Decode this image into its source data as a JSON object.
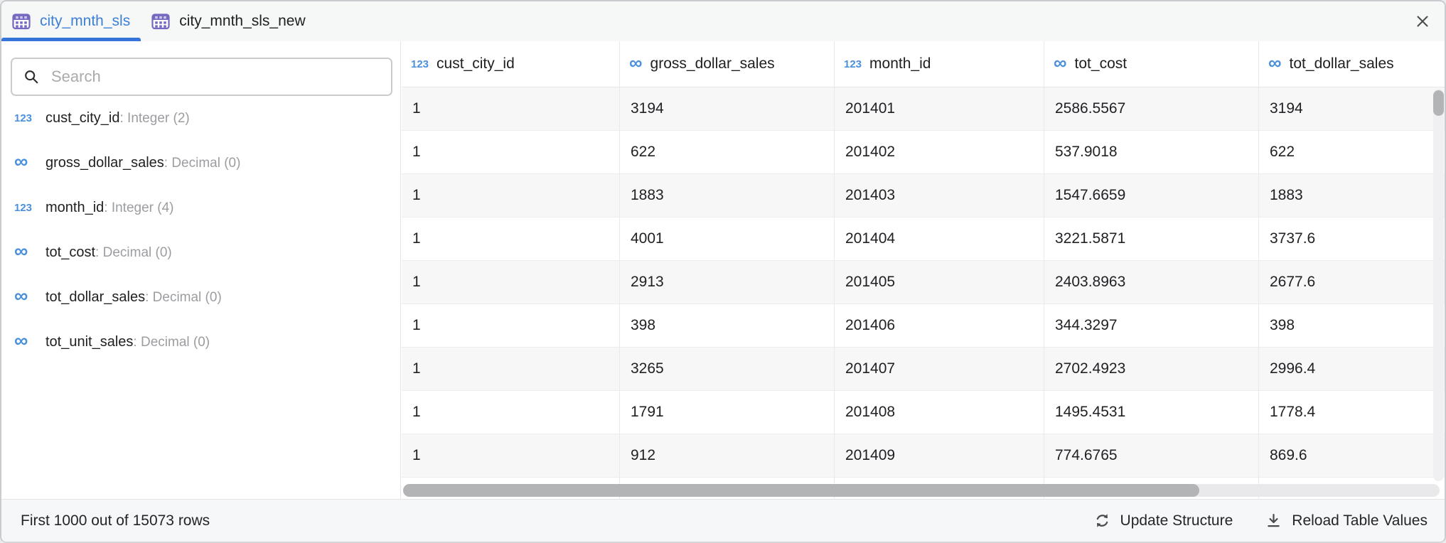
{
  "tabs": [
    {
      "label": "city_mnth_sls",
      "active": true
    },
    {
      "label": "city_mnth_sls_new",
      "active": false
    }
  ],
  "icons": {
    "numeric": "123",
    "decimal": "∞",
    "tab_icon": "table-grid",
    "search_icon": "magnifier",
    "close_icon": "x-cross",
    "update_icon": "sync-circular-arrows",
    "reload_icon": "download-arrow-to-line"
  },
  "sidebar": {
    "search_placeholder": "Search",
    "fields": [
      {
        "name": "cust_city_id",
        "suffix": ": Integer (2)",
        "icon": "numeric"
      },
      {
        "name": "gross_dollar_sales",
        "suffix": ": Decimal (0)",
        "icon": "decimal"
      },
      {
        "name": "month_id",
        "suffix": ": Integer (4)",
        "icon": "numeric"
      },
      {
        "name": "tot_cost",
        "suffix": ": Decimal (0)",
        "icon": "decimal"
      },
      {
        "name": "tot_dollar_sales",
        "suffix": ": Decimal (0)",
        "icon": "decimal"
      },
      {
        "name": "tot_unit_sales",
        "suffix": ": Decimal (0)",
        "icon": "decimal"
      }
    ]
  },
  "table": {
    "columns": [
      {
        "name": "cust_city_id",
        "icon": "numeric"
      },
      {
        "name": "gross_dollar_sales",
        "icon": "decimal"
      },
      {
        "name": "month_id",
        "icon": "numeric"
      },
      {
        "name": "tot_cost",
        "icon": "decimal"
      },
      {
        "name": "tot_dollar_sales",
        "icon": "decimal"
      }
    ],
    "rows": [
      [
        "1",
        "3194",
        "201401",
        "2586.5567",
        "3194"
      ],
      [
        "1",
        "622",
        "201402",
        "537.9018",
        "622"
      ],
      [
        "1",
        "1883",
        "201403",
        "1547.6659",
        "1883"
      ],
      [
        "1",
        "4001",
        "201404",
        "3221.5871",
        "3737.6"
      ],
      [
        "1",
        "2913",
        "201405",
        "2403.8963",
        "2677.6"
      ],
      [
        "1",
        "398",
        "201406",
        "344.3297",
        "398"
      ],
      [
        "1",
        "3265",
        "201407",
        "2702.4923",
        "2996.4"
      ],
      [
        "1",
        "1791",
        "201408",
        "1495.4531",
        "1778.4"
      ],
      [
        "1",
        "912",
        "201409",
        "774.6765",
        "869.6"
      ]
    ]
  },
  "status_bar": {
    "row_count_text": "First 1000 out of 15073 rows",
    "update_structure_label": "Update Structure",
    "reload_table_values_label": "Reload Table Values"
  },
  "colors": {
    "accent_blue": "#4a90dc",
    "tab_active_blue": "#3d80d8",
    "tab_underline_blue": "#3674d9",
    "icon_purple": "#7568c0",
    "row_alt_gray": "#f7f7f8",
    "scrollbar_thumb": "#b3b4b6"
  }
}
